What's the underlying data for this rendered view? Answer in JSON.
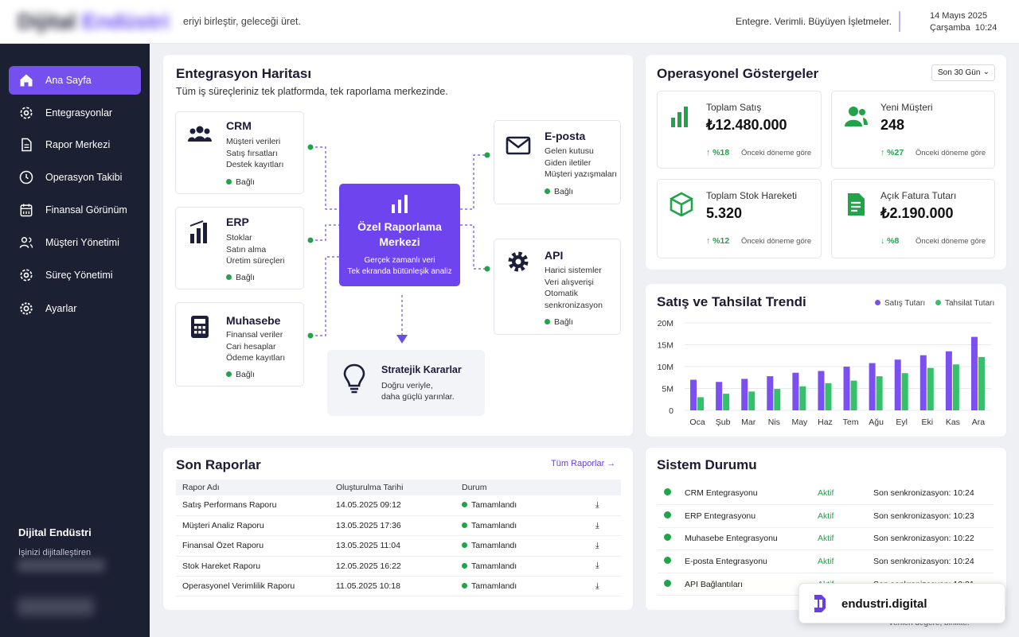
{
  "header": {
    "brand_a": "Dijital",
    "brand_b": "Endüstri",
    "tagline": "eriyi birleştir, geleceği üret.",
    "slogan": "Entegre. Verimli. Büyüyen İşletmeler.",
    "date": "14 Mayıs 2025",
    "weekday_time": "Çarşamba  10:24"
  },
  "sidebar": {
    "items": [
      {
        "label": "Ana Sayfa",
        "icon": "home-icon"
      },
      {
        "label": "Entegrasyonlar",
        "icon": "gear-icon"
      },
      {
        "label": "Rapor Merkezi",
        "icon": "document-icon"
      },
      {
        "label": "Operasyon Takibi",
        "icon": "clock-icon"
      },
      {
        "label": "Finansal Görünüm",
        "icon": "calendar-icon"
      },
      {
        "label": "Müşteri Yönetimi",
        "icon": "users-icon"
      },
      {
        "label": "Süreç Yönetimi",
        "icon": "gear-icon"
      },
      {
        "label": "Ayarlar",
        "icon": "settings-icon"
      }
    ],
    "title": "Dijital Endüstri",
    "subtitle": "İşinizi dijitalleştiren"
  },
  "integration": {
    "title": "Entegrasyon Haritası",
    "subtitle": "Tüm iş süreçleriniz tek platformda, tek raporlama merkezinde.",
    "crm": {
      "title": "CRM",
      "lines": [
        "Müşteri verileri",
        "Satış fırsatları",
        "Destek kayıtları"
      ],
      "status": "Bağlı"
    },
    "erp": {
      "title": "ERP",
      "lines": [
        "Stoklar",
        "Satın alma",
        "Üretim süreçleri"
      ],
      "status": "Bağlı"
    },
    "muhasebe": {
      "title": "Muhasebe",
      "lines": [
        "Finansal veriler",
        "Cari hesaplar",
        "Ödeme kayıtları"
      ],
      "status": "Bağlı"
    },
    "eposta": {
      "title": "E-posta",
      "lines": [
        "Gelen kutusu",
        "Giden iletiler",
        "Müşteri yazışmaları"
      ],
      "status": "Bağlı"
    },
    "api": {
      "title": "API",
      "lines": [
        "Harici sistemler",
        "Veri alışverişi",
        "Otomatik",
        "senkronizasyon"
      ],
      "status": "Bağlı"
    },
    "hub": {
      "title_1": "Özel Raporlama",
      "title_2": "Merkezi",
      "line_1": "Gerçek zamanlı veri",
      "line_2": "Tek ekranda bütünleşik analiz"
    },
    "strategy": {
      "title": "Stratejik Kararlar",
      "line_1": "Doğru veriyle,",
      "line_2": "daha güçlü yarınlar."
    }
  },
  "kpi": {
    "title": "Operasyonel Göstergeler",
    "period": "Son 30 Gün",
    "cards": [
      {
        "label": "Toplam Satış",
        "value": "₺12.480.000",
        "delta": "↑ %18",
        "compare": "Önceki döneme göre",
        "icon": "bar-chart-icon"
      },
      {
        "label": "Yeni Müşteri",
        "value": "248",
        "delta": "↑ %27",
        "compare": "Önceki döneme göre",
        "icon": "users-icon"
      },
      {
        "label": "Toplam Stok Hareketi",
        "value": "5.320",
        "delta": "↑ %12",
        "compare": "Önceki döneme göre",
        "icon": "box-icon"
      },
      {
        "label": "Açık Fatura Tutarı",
        "value": "₺2.190.000",
        "delta": "↓ %8",
        "compare": "Önceki döneme göre",
        "icon": "invoice-icon"
      }
    ]
  },
  "trend": {
    "title": "Satış ve Tahsilat Trendi",
    "legend_sales": "Satış Tutarı",
    "legend_collections": "Tahsilat Tutarı"
  },
  "chart_data": {
    "type": "bar",
    "categories": [
      "Oca",
      "Şub",
      "Mar",
      "Nis",
      "May",
      "Haz",
      "Tem",
      "Ağu",
      "Eyl",
      "Eki",
      "Kas",
      "Ara"
    ],
    "series": [
      {
        "name": "Satış Tutarı",
        "color": "#7b4ff0",
        "values": [
          7,
          6.5,
          7.2,
          7.8,
          8.6,
          9,
          10,
          10.8,
          11.6,
          12.6,
          13.5,
          16.8
        ]
      },
      {
        "name": "Tahsilat Tutarı",
        "color": "#35c16a",
        "values": [
          3,
          3.8,
          4.3,
          4.9,
          5.5,
          6.2,
          6.8,
          7.8,
          8.5,
          9.7,
          10.5,
          12.2
        ]
      }
    ],
    "yticks": [
      "0",
      "5M",
      "10M",
      "15M",
      "20M"
    ],
    "ylim": [
      0,
      20
    ],
    "grid": true,
    "legend": "top-right"
  },
  "reports": {
    "title": "Son Raporlar",
    "all_link": "Tüm Raporlar  →",
    "columns": [
      "Rapor Adı",
      "Oluşturulma Tarihi",
      "Durum"
    ],
    "rows": [
      {
        "name": "Satış Performans Raporu",
        "date": "14.05.2025 09:12",
        "status": "Tamamlandı"
      },
      {
        "name": "Müşteri Analiz Raporu",
        "date": "13.05.2025 17:36",
        "status": "Tamamlandı"
      },
      {
        "name": "Finansal Özet Raporu",
        "date": "13.05.2025 11:04",
        "status": "Tamamlandı"
      },
      {
        "name": "Stok Hareket Raporu",
        "date": "12.05.2025 16:22",
        "status": "Tamamlandı"
      },
      {
        "name": "Operasyonel Verimlilik Raporu",
        "date": "11.05.2025 10:18",
        "status": "Tamamlandı"
      }
    ]
  },
  "system": {
    "title": "Sistem Durumu",
    "rows": [
      {
        "name": "CRM Entegrasyonu",
        "state": "Aktif",
        "sync": "Son senkronizasyon: 10:24"
      },
      {
        "name": "ERP Entegrasyonu",
        "state": "Aktif",
        "sync": "Son senkronizasyon: 10:23"
      },
      {
        "name": "Muhasebe Entegrasyonu",
        "state": "Aktif",
        "sync": "Son senkronizasyon: 10:22"
      },
      {
        "name": "E-posta Entegrasyonu",
        "state": "Aktif",
        "sync": "Son senkronizasyon: 10:24"
      },
      {
        "name": "API Bağlantıları",
        "state": "Aktif",
        "sync": "Son senkronizasyon: 10:21"
      }
    ]
  },
  "badge": {
    "text": "endustri.digital"
  },
  "footer": {
    "text": "Verileri değere, birlikte."
  }
}
